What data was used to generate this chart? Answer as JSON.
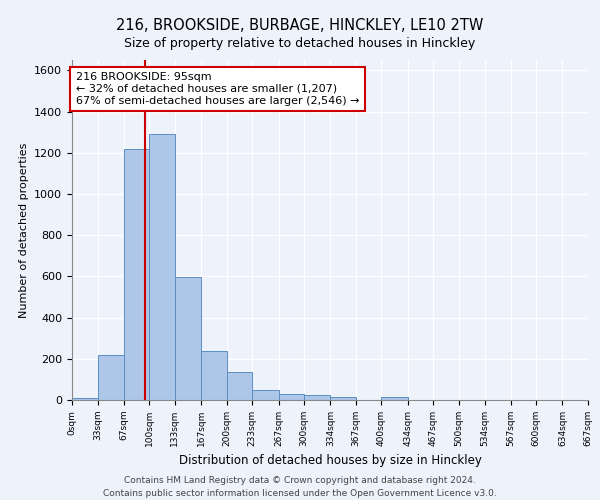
{
  "title1": "216, BROOKSIDE, BURBAGE, HINCKLEY, LE10 2TW",
  "title2": "Size of property relative to detached houses in Hinckley",
  "xlabel": "Distribution of detached houses by size in Hinckley",
  "ylabel": "Number of detached properties",
  "footer": "Contains HM Land Registry data © Crown copyright and database right 2024.\nContains public sector information licensed under the Open Government Licence v3.0.",
  "bin_edges": [
    0,
    33,
    67,
    100,
    133,
    167,
    200,
    233,
    267,
    300,
    334,
    367,
    400,
    434,
    467,
    500,
    534,
    567,
    600,
    634,
    667
  ],
  "bin_values": [
    10,
    220,
    1220,
    1290,
    595,
    240,
    135,
    50,
    30,
    25,
    15,
    0,
    15,
    0,
    0,
    0,
    0,
    0,
    0,
    0
  ],
  "bar_color": "#aec6e8",
  "bar_edge_color": "#5a8fc2",
  "property_sqm": 95,
  "property_label": "216 BROOKSIDE: 95sqm",
  "annotation_line1": "← 32% of detached houses are smaller (1,207)",
  "annotation_line2": "67% of semi-detached houses are larger (2,546) →",
  "vline_color": "#cc0000",
  "annotation_box_color": "#cc0000",
  "bg_color": "#eef2fb",
  "grid_color": "#ffffff",
  "ylim": [
    0,
    1650
  ],
  "xlim": [
    0,
    667
  ],
  "yticks": [
    0,
    200,
    400,
    600,
    800,
    1000,
    1200,
    1400,
    1600
  ]
}
